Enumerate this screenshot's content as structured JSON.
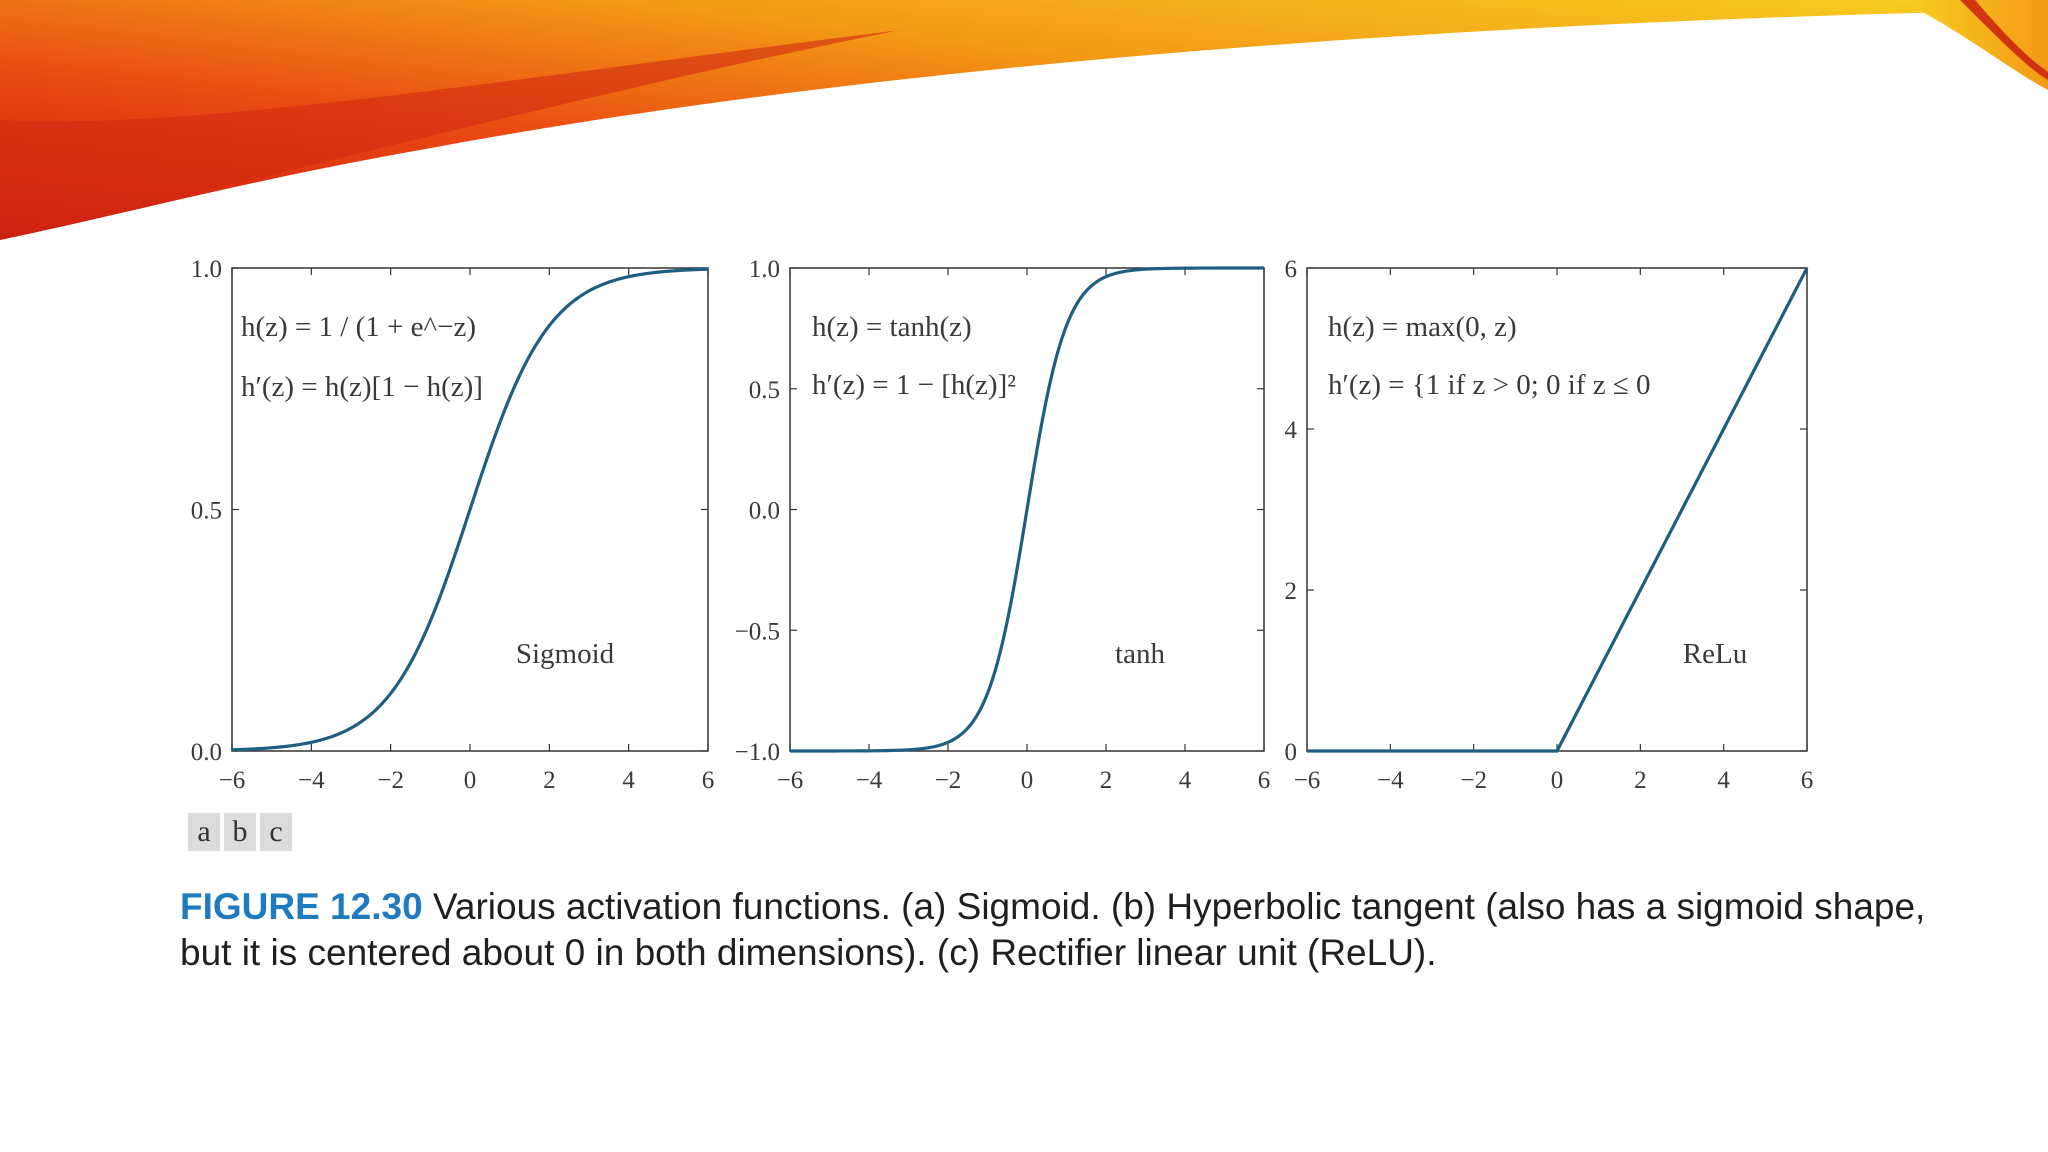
{
  "banner": {
    "colors": [
      "#f7d021",
      "#f39a16",
      "#ea4a12",
      "#c8170f"
    ]
  },
  "panel_letters": [
    "a",
    "b",
    "c"
  ],
  "caption": {
    "lead": "FIGURE 12.30",
    "text": " Various activation functions. (a) Sigmoid. (b) Hyperbolic tangent (also has a sigmoid shape, but it is centered about 0 in both dimensions). (c) Rectifier linear unit (ReLU)."
  },
  "chart_data": [
    {
      "type": "line",
      "function": "sigmoid",
      "label": "Sigmoid",
      "formula_lines": [
        "h(z) = 1 / (1 + e^−z)",
        "h′(z) = h(z)[1 − h(z)]"
      ],
      "xlim": [
        -6,
        6
      ],
      "ylim": [
        0,
        1
      ],
      "xticks": [
        "−6",
        "−4",
        "−2",
        "0",
        "2",
        "4",
        "6"
      ],
      "yticks": [
        "1.0",
        "0.5",
        "0.0"
      ],
      "x": [
        -6,
        -5,
        -4,
        -3,
        -2,
        -1,
        0,
        1,
        2,
        3,
        4,
        5,
        6
      ],
      "y": [
        0.002,
        0.007,
        0.018,
        0.047,
        0.119,
        0.269,
        0.5,
        0.731,
        0.881,
        0.953,
        0.982,
        0.993,
        0.998
      ],
      "color": "#1d5f80"
    },
    {
      "type": "line",
      "function": "tanh",
      "label": "tanh",
      "formula_lines": [
        "h(z) = tanh(z)",
        "h′(z) = 1 − [h(z)]²"
      ],
      "xlim": [
        -6,
        6
      ],
      "ylim": [
        -1,
        1
      ],
      "xticks": [
        "−6",
        "−4",
        "−2",
        "0",
        "2",
        "4",
        "6"
      ],
      "yticks": [
        "1.0",
        "0.5",
        "0.0",
        "−0.5",
        "−1.0"
      ],
      "x": [
        -6,
        -3,
        -2,
        -1.5,
        -1,
        -0.5,
        0,
        0.5,
        1,
        1.5,
        2,
        3,
        6
      ],
      "y": [
        -1.0,
        -0.995,
        -0.964,
        -0.905,
        -0.762,
        -0.462,
        0,
        0.462,
        0.762,
        0.905,
        0.964,
        0.995,
        1.0
      ],
      "color": "#1d5f80"
    },
    {
      "type": "line",
      "function": "relu",
      "label": "ReLu",
      "formula_lines": [
        "h(z) = max(0, z)",
        "h′(z) = {1 if z > 0; 0 if z ≤ 0"
      ],
      "xlim": [
        -6,
        6
      ],
      "ylim": [
        0,
        6
      ],
      "xticks": [
        "−6",
        "−4",
        "−2",
        "0",
        "2",
        "4",
        "6"
      ],
      "yticks": [
        "6",
        "4",
        "2",
        "0"
      ],
      "x": [
        -6,
        0,
        6
      ],
      "y": [
        0,
        0,
        6
      ],
      "color": "#1d5f80"
    }
  ]
}
